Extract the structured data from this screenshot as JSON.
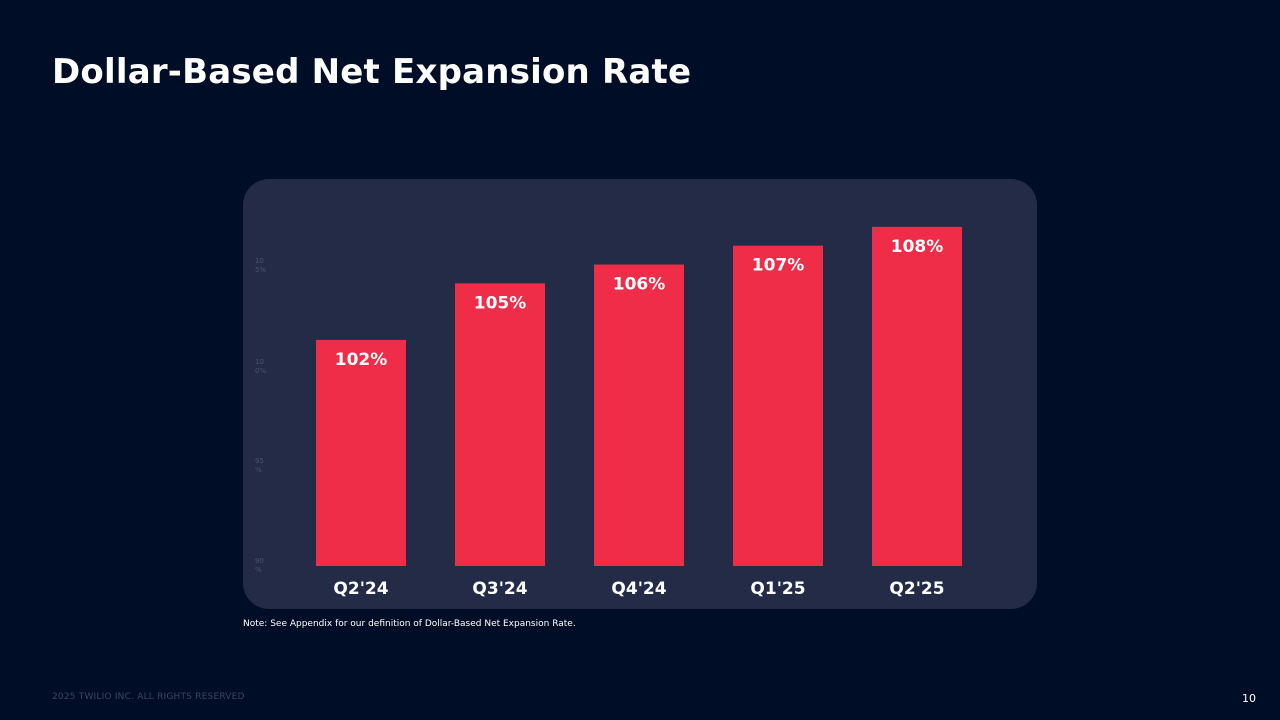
{
  "slide": {
    "title": "Dollar-Based Net Expansion Rate",
    "note": "Note: See Appendix for our definition of Dollar-Based Net Expansion Rate.",
    "footer": "2025 TWILIO INC. ALL RIGHTS RESERVED",
    "page_number": "10"
  },
  "colors": {
    "background": "#000d26",
    "panel": "#232b47",
    "bar": "#ef2d48",
    "text": "#ffffff"
  },
  "chart_data": {
    "type": "bar",
    "title": "Dollar-Based Net Expansion Rate",
    "xlabel": "",
    "ylabel": "",
    "categories": [
      "Q2'24",
      "Q3'24",
      "Q4'24",
      "Q1'25",
      "Q2'25"
    ],
    "values": [
      102,
      105,
      106,
      107,
      108
    ],
    "data_labels": [
      "102%",
      "105%",
      "106%",
      "107%",
      "108%"
    ],
    "unit": "%",
    "ylim": [
      90,
      109
    ],
    "grid": false,
    "legend": "none"
  }
}
